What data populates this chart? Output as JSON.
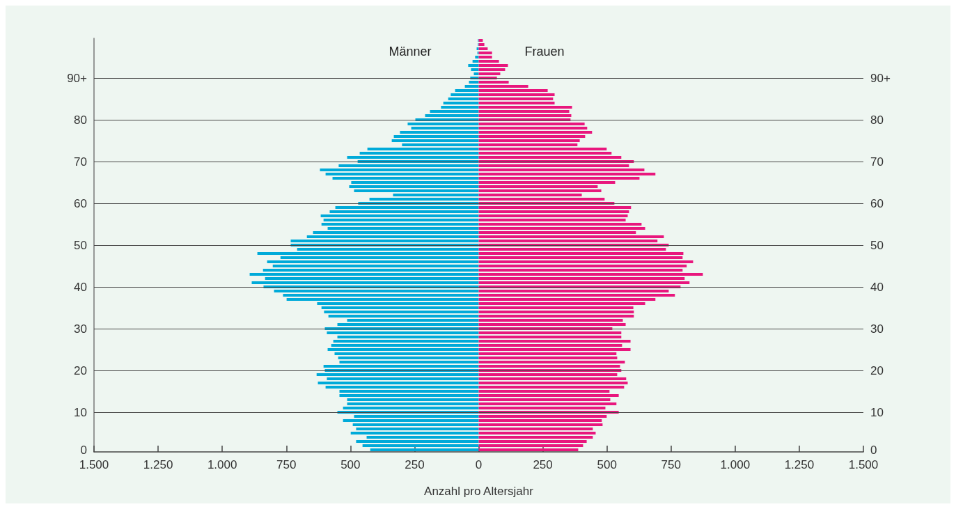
{
  "chart_data": {
    "type": "bar",
    "orientation": "horizontal",
    "stacked": true,
    "xlabel": "Anzahl pro Altersjahr",
    "grid": "y",
    "categories": [
      null,
      null,
      null,
      null,
      null,
      null,
      null,
      null,
      null,
      "90+",
      null,
      null,
      null,
      null,
      null,
      null,
      null,
      null,
      null,
      "80",
      null,
      null,
      null,
      null,
      null,
      null,
      null,
      null,
      null,
      "70",
      null,
      null,
      null,
      null,
      null,
      null,
      null,
      null,
      null,
      "60",
      null,
      null,
      null,
      null,
      null,
      null,
      null,
      null,
      null,
      "50",
      null,
      null,
      null,
      null,
      null,
      null,
      null,
      null,
      null,
      "40",
      null,
      null,
      null,
      null,
      null,
      null,
      null,
      null,
      null,
      "30",
      null,
      null,
      null,
      null,
      null,
      null,
      null,
      null,
      null,
      "20",
      null,
      null,
      null,
      null,
      null,
      null,
      null,
      null,
      null,
      "10",
      null,
      null,
      null,
      null,
      null,
      null,
      null,
      null,
      "0"
    ],
    "xlim": [
      -1500,
      1500
    ],
    "xticks": [
      {
        "value": -1500,
        "label": "1.500"
      },
      {
        "value": -1250,
        "label": "1.250"
      },
      {
        "value": -1000,
        "label": "1.000"
      },
      {
        "value": -750,
        "label": "750"
      },
      {
        "value": -500,
        "label": "500"
      },
      {
        "value": -250,
        "label": "250"
      },
      0,
      250,
      500,
      750,
      {
        "value": 1000,
        "label": "1.000"
      },
      {
        "value": 1250,
        "label": "1.250"
      },
      {
        "value": 1500,
        "label": "1.500"
      }
    ],
    "series": [
      {
        "name": "Männer",
        "color": "#00aad9",
        "values": [
          -3,
          -3,
          -8,
          -5,
          -14,
          -24,
          -41,
          -30,
          -19,
          -33,
          -38,
          -54,
          -92,
          -109,
          -119,
          -138,
          -147,
          -190,
          -209,
          -247,
          -277,
          -263,
          -307,
          -331,
          -339,
          -299,
          -434,
          -464,
          -513,
          -472,
          -546,
          -619,
          -597,
          -570,
          -497,
          -505,
          -486,
          -334,
          -426,
          -470,
          -559,
          -581,
          -616,
          -605,
          -613,
          -589,
          -646,
          -670,
          -733,
          -733,
          -708,
          -863,
          -773,
          -825,
          -803,
          -841,
          -893,
          -833,
          -885,
          -839,
          -798,
          -763,
          -749,
          -630,
          -613,
          -603,
          -586,
          -513,
          -551,
          -600,
          -592,
          -551,
          -567,
          -575,
          -589,
          -562,
          -548,
          -543,
          -605,
          -600,
          -632,
          -592,
          -627,
          -597,
          -543,
          -543,
          -513,
          -513,
          -529,
          -551,
          -486,
          -529,
          -491,
          -478,
          -499,
          -437,
          -478,
          -453,
          -423
        ]
      },
      {
        "name": "Frauen",
        "color": "#e8177d",
        "values": [
          16,
          22,
          35,
          52,
          52,
          79,
          114,
          103,
          84,
          71,
          117,
          193,
          269,
          296,
          290,
          296,
          364,
          353,
          361,
          358,
          413,
          423,
          442,
          415,
          394,
          385,
          499,
          518,
          556,
          605,
          586,
          646,
          689,
          627,
          532,
          464,
          478,
          402,
          491,
          529,
          594,
          586,
          581,
          573,
          635,
          649,
          613,
          722,
          697,
          741,
          730,
          798,
          795,
          836,
          811,
          795,
          874,
          803,
          822,
          787,
          741,
          765,
          689,
          649,
          603,
          605,
          605,
          562,
          573,
          521,
          556,
          556,
          592,
          559,
          592,
          537,
          540,
          570,
          551,
          556,
          540,
          575,
          581,
          567,
          510,
          546,
          513,
          537,
          494,
          546,
          499,
          480,
          483,
          445,
          456,
          445,
          421,
          407,
          388
        ]
      }
    ]
  }
}
